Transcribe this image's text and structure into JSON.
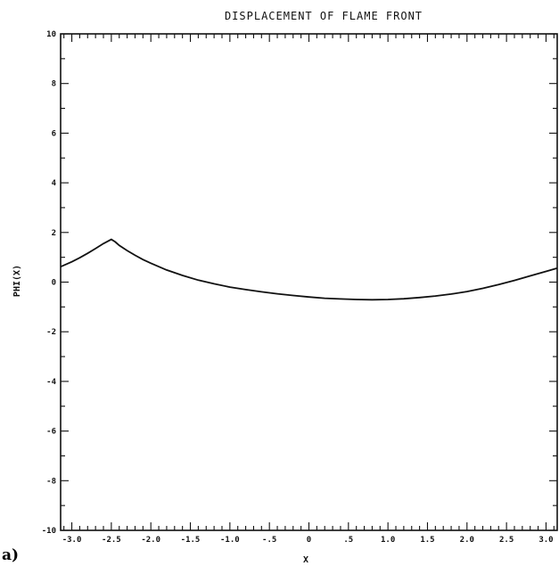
{
  "panel_label": "a)",
  "chart_data": {
    "type": "line",
    "title": "DISPLACEMENT OF FLAME FRONT",
    "xlabel": "X",
    "ylabel": "PHI(X)",
    "xlim": [
      -3.14159,
      3.14159
    ],
    "ylim": [
      -10,
      10
    ],
    "grid": false,
    "x_ticks": [
      -3.0,
      -2.5,
      -2.0,
      -1.5,
      -1.0,
      -0.5,
      0,
      0.5,
      1.0,
      1.5,
      2.0,
      2.5,
      3.0
    ],
    "x_tick_labels": [
      "-3.0",
      "-2.5",
      "-2.0",
      "-1.5",
      "-1.0",
      "-.5",
      "0",
      ".5",
      "1.0",
      "1.5",
      "2.0",
      "2.5",
      "3.0"
    ],
    "y_ticks": [
      -10,
      -8,
      -6,
      -4,
      -2,
      0,
      2,
      4,
      6,
      8,
      10
    ],
    "y_tick_labels": [
      "-10",
      "-8",
      "-6",
      "-4",
      "-2",
      "0",
      "2",
      "4",
      "6",
      "8",
      "10"
    ],
    "series": [
      {
        "x": [
          -3.14,
          -3.0,
          -2.9,
          -2.8,
          -2.7,
          -2.6,
          -2.5,
          -2.45,
          -2.4,
          -2.3,
          -2.2,
          -2.1,
          -2.0,
          -1.8,
          -1.6,
          -1.4,
          -1.2,
          -1.0,
          -0.8,
          -0.6,
          -0.4,
          -0.2,
          0.0,
          0.2,
          0.4,
          0.6,
          0.8,
          1.0,
          1.2,
          1.4,
          1.6,
          1.8,
          2.0,
          2.2,
          2.4,
          2.6,
          2.8,
          3.0,
          3.14
        ],
        "y": [
          0.62,
          0.82,
          0.98,
          1.16,
          1.35,
          1.55,
          1.72,
          1.62,
          1.48,
          1.27,
          1.08,
          0.91,
          0.76,
          0.49,
          0.27,
          0.08,
          -0.07,
          -0.2,
          -0.3,
          -0.39,
          -0.47,
          -0.54,
          -0.6,
          -0.65,
          -0.68,
          -0.7,
          -0.71,
          -0.7,
          -0.67,
          -0.62,
          -0.56,
          -0.48,
          -0.38,
          -0.25,
          -0.1,
          0.07,
          0.25,
          0.43,
          0.56
        ]
      }
    ]
  }
}
